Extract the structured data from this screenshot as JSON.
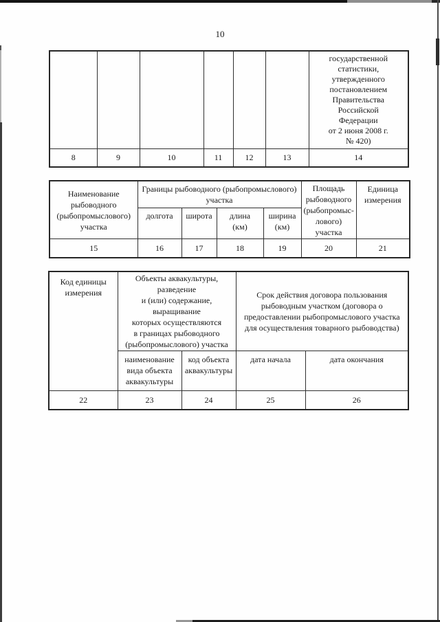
{
  "colors": {
    "ink": "#1a1a1a",
    "table_border": "#2f2f2f",
    "page_background": "#ffffff",
    "scan_edge_dark": "#141414",
    "scan_edge_gray": "#8e8e8e"
  },
  "page": {
    "number": "10"
  },
  "table1": {
    "description": "continuation strip of form, columns 8-14",
    "header_col14_lines": [
      "государственной",
      "статистики,",
      "утвержденного",
      "постановлением",
      "Правительства",
      "Российской",
      "Федерации",
      "от 2 июня 2008 г.",
      "№ 420)"
    ],
    "numbers": [
      "8",
      "9",
      "10",
      "11",
      "12",
      "13",
      "14"
    ]
  },
  "table2": {
    "name_lines": [
      "Наименование",
      "рыбоводного",
      "(рыбопромыслового)",
      "участка"
    ],
    "borders_group_lines": [
      "Границы рыбоводного (рыбопромыслового)",
      "участка"
    ],
    "area_lines": [
      "Площадь",
      "рыбоводного",
      "(рыбопромыс-",
      "лового)",
      "участка"
    ],
    "unit_lines": [
      "Единица",
      "измерения"
    ],
    "sub": {
      "longitude": "долгота",
      "latitude": "широта",
      "length_lines": [
        "длина",
        "(км)"
      ],
      "width_lines": [
        "ширина",
        "(км)"
      ]
    },
    "numbers": [
      "15",
      "16",
      "17",
      "18",
      "19",
      "20",
      "21"
    ]
  },
  "table3": {
    "unit_code_lines": [
      "Код единицы",
      "измерения"
    ],
    "aquaculture_group_lines": [
      "Объекты аквакультуры, разведение",
      "и (или) содержание, выращивание",
      "которых осуществляются",
      "в границах рыбоводного",
      "(рыбопромыслового) участка"
    ],
    "contract_group_lines": [
      "Срок действия договора пользования",
      "рыбоводным участком (договора о",
      "предоставлении рыбопромыслового участка",
      "для осуществления товарного рыбоводства)"
    ],
    "sub_name_lines": [
      "наименование",
      "вида объекта",
      "аквакультуры"
    ],
    "sub_code_lines": [
      "код объекта",
      "аквакультуры"
    ],
    "sub_date_start": "дата начала",
    "sub_date_end": "дата окончания",
    "numbers": [
      "22",
      "23",
      "24",
      "25",
      "26"
    ]
  }
}
